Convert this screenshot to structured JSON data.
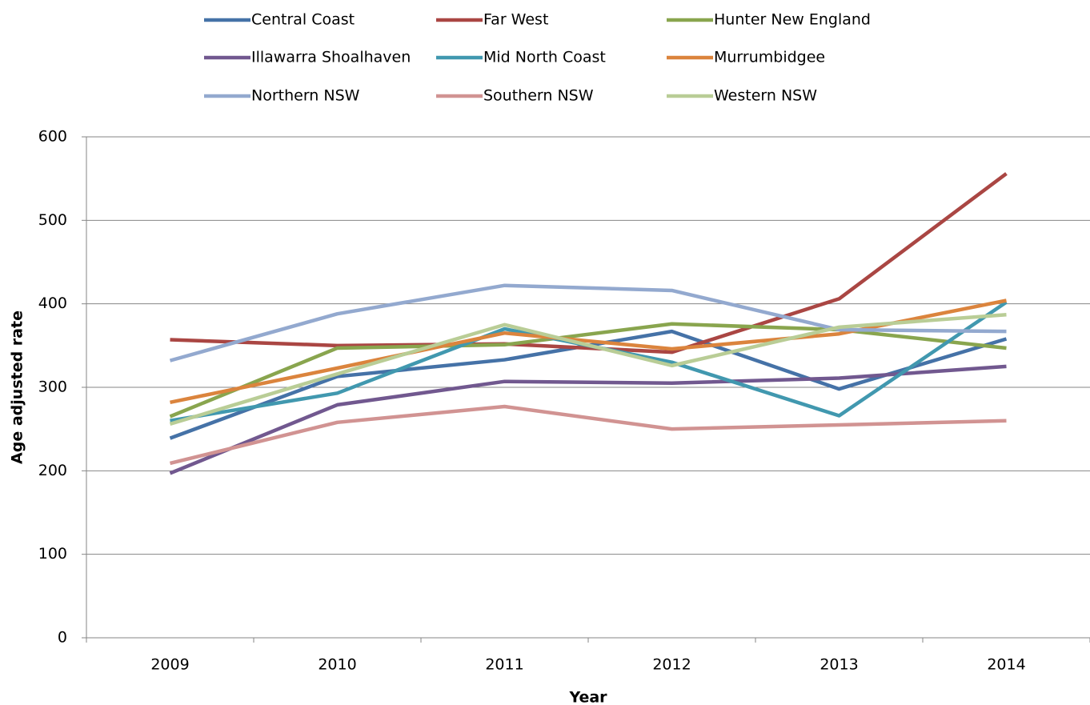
{
  "chart_data": {
    "type": "line",
    "x_label": "Year",
    "y_label": "Age adjusted rate",
    "categories": [
      "2009",
      "2010",
      "2011",
      "2012",
      "2013",
      "2014"
    ],
    "ylim": [
      0,
      600
    ],
    "yticks": [
      0,
      100,
      200,
      300,
      400,
      500,
      600
    ],
    "grid": true,
    "legend": "top",
    "series": [
      {
        "name": "Central Coast",
        "color": "#4572a7",
        "values": [
          239,
          313,
          333,
          367,
          298,
          358
        ]
      },
      {
        "name": "Far West",
        "color": "#aa4643",
        "values": [
          357,
          350,
          352,
          342,
          406,
          556
        ]
      },
      {
        "name": "Hunter New England",
        "color": "#89a54e",
        "values": [
          265,
          347,
          351,
          376,
          369,
          347
        ]
      },
      {
        "name": "Illawarra Shoalhaven",
        "color": "#71588f",
        "values": [
          197,
          279,
          307,
          305,
          311,
          325
        ]
      },
      {
        "name": "Mid North Coast",
        "color": "#4198af",
        "values": [
          260,
          293,
          370,
          330,
          266,
          402
        ]
      },
      {
        "name": "Murrumbidgee",
        "color": "#db843d",
        "values": [
          282,
          323,
          365,
          346,
          364,
          404
        ]
      },
      {
        "name": "Northern NSW",
        "color": "#93a9cf",
        "values": [
          332,
          388,
          422,
          416,
          369,
          367
        ]
      },
      {
        "name": "Southern NSW",
        "color": "#d19392",
        "values": [
          209,
          258,
          277,
          250,
          255,
          260
        ]
      },
      {
        "name": "Western NSW",
        "color": "#b9cd96",
        "values": [
          256,
          316,
          375,
          326,
          372,
          387
        ]
      }
    ]
  }
}
